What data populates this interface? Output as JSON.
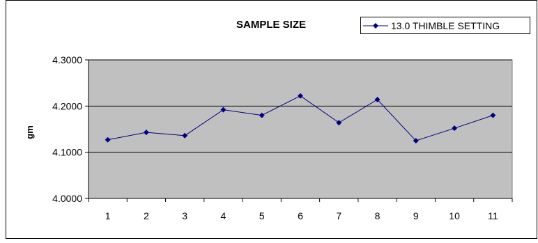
{
  "chart_data": {
    "type": "line",
    "title": "SAMPLE SIZE",
    "xlabel": "",
    "ylabel": "gm",
    "categories": [
      "1",
      "2",
      "3",
      "4",
      "5",
      "6",
      "7",
      "8",
      "9",
      "10",
      "11"
    ],
    "series": [
      {
        "name": "13.0 THIMBLE SETTING",
        "values": [
          4.127,
          4.143,
          4.136,
          4.192,
          4.18,
          4.222,
          4.164,
          4.214,
          4.125,
          4.152,
          4.18
        ],
        "color": "#000080",
        "marker": "diamond"
      }
    ],
    "ylim": [
      4.0,
      4.3
    ],
    "yticks": [
      "4.0000",
      "4.1000",
      "4.2000",
      "4.3000"
    ],
    "grid": true,
    "plot_background": "#c0c0c0",
    "legend_position": "top-right"
  }
}
